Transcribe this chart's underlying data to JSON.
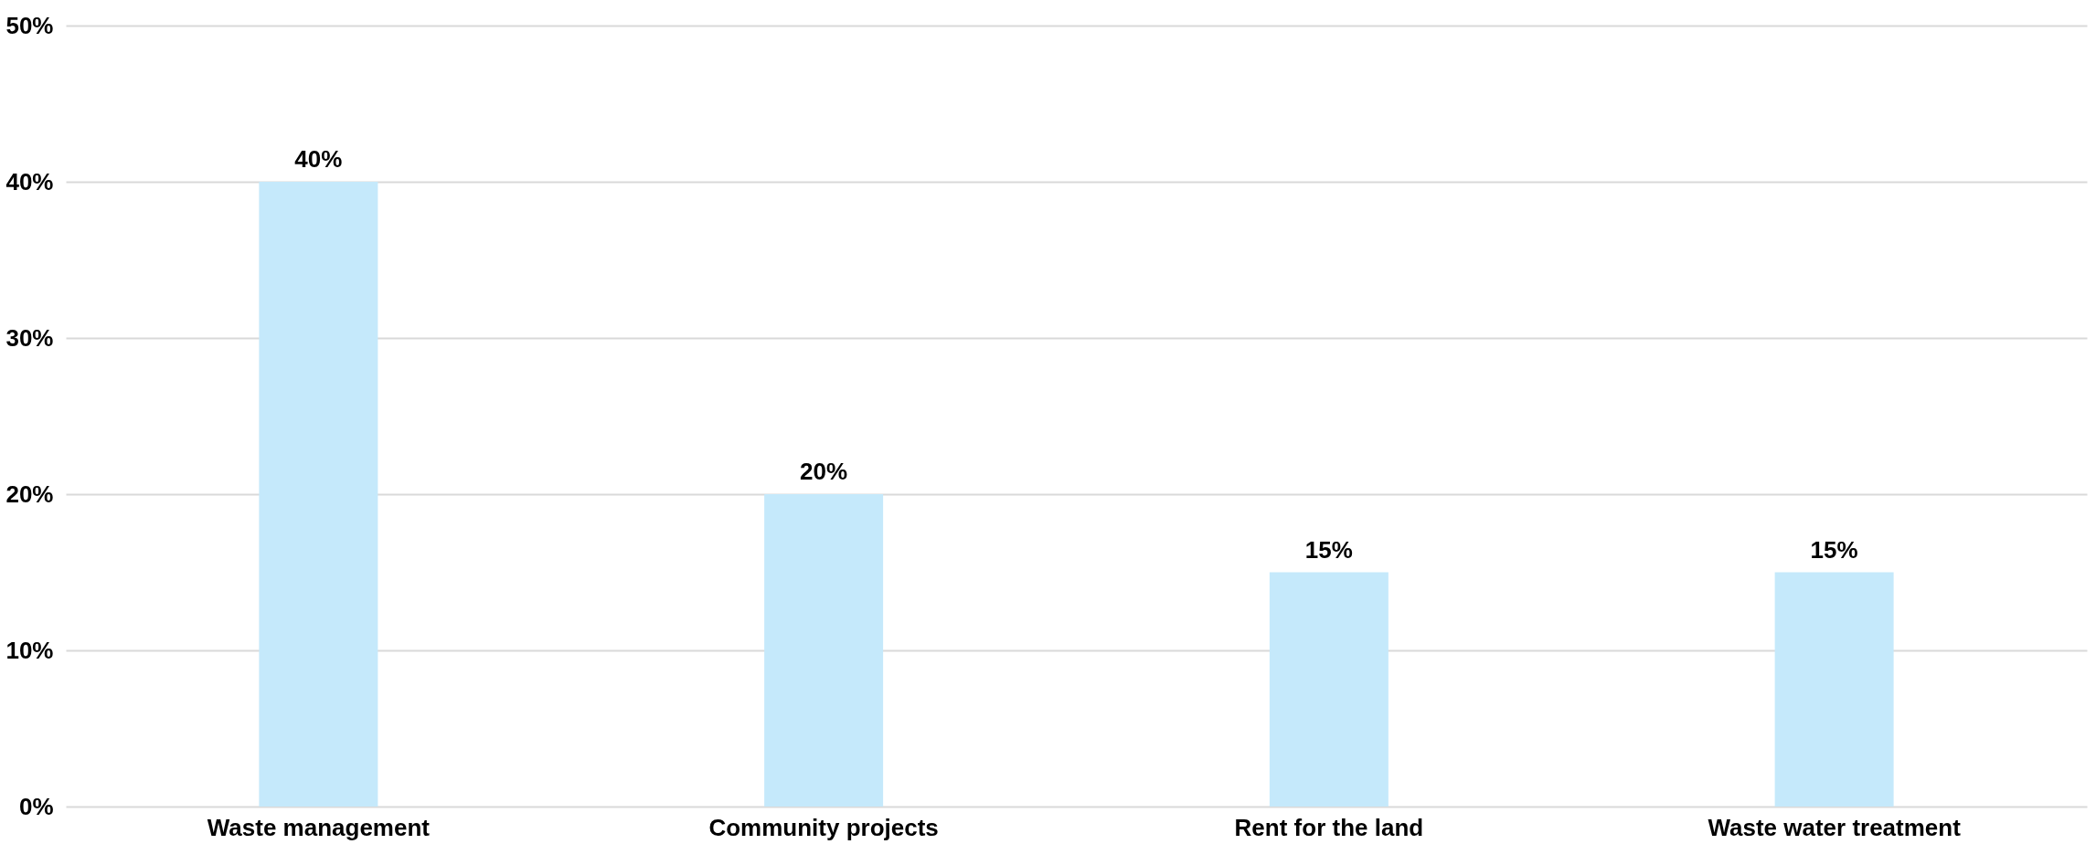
{
  "chart_data": {
    "type": "bar",
    "categories": [
      "Waste management",
      "Community projects",
      "Rent for the land",
      "Waste water treatment"
    ],
    "values": [
      40,
      20,
      15,
      15
    ],
    "value_labels": [
      "40%",
      "20%",
      "15%",
      "15%"
    ],
    "color": "#c5e9fb",
    "ylim": [
      0,
      50
    ],
    "yticks": [
      {
        "value": 0,
        "label": "0%"
      },
      {
        "value": 10,
        "label": "10%"
      },
      {
        "value": 20,
        "label": "20%"
      },
      {
        "value": 30,
        "label": "30%"
      },
      {
        "value": 40,
        "label": "40%"
      },
      {
        "value": 50,
        "label": "50%"
      }
    ],
    "grid": "y"
  }
}
